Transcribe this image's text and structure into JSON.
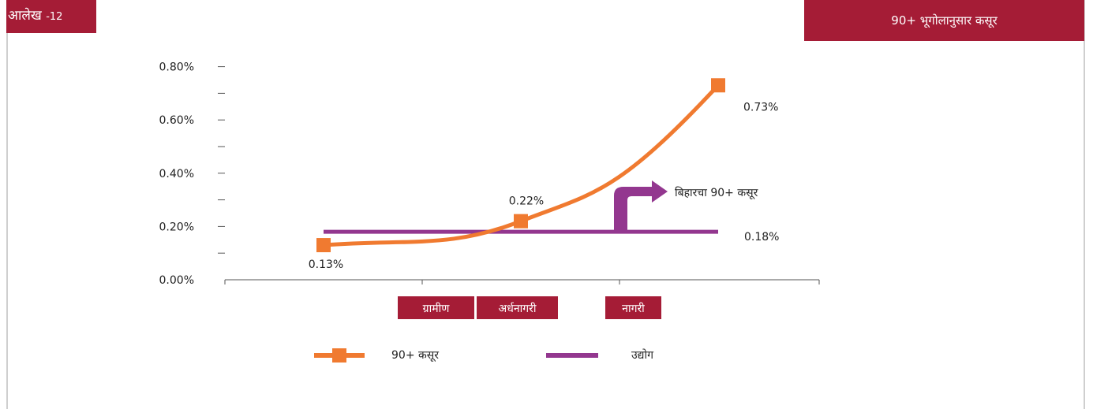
{
  "header": {
    "exhibit_label": "आलेख",
    "exhibit_number": "-12",
    "title": "90+ भूगोलानुसार कसूर"
  },
  "colors": {
    "brand": "#a51c36",
    "series_orange": "#f07a30",
    "series_purple": "#93378f",
    "axis": "#555555"
  },
  "chart_data": {
    "type": "line",
    "title": "90+ भूगोलानुसार कसूर",
    "categories": [
      "ग्रामीण",
      "अर्धनागरी",
      "नागरी"
    ],
    "y_ticks": [
      "0.00%",
      "0.20%",
      "0.40%",
      "0.60%",
      "0.80%"
    ],
    "ylim": [
      0,
      0.8
    ],
    "series": [
      {
        "name": "90+ कसूर",
        "values": [
          0.13,
          0.22,
          0.73
        ],
        "labels": [
          "0.13%",
          "0.22%",
          "0.73%"
        ]
      },
      {
        "name": "उद्योग",
        "values": [
          0.18,
          0.18,
          0.18
        ],
        "labels": [
          "0.18%"
        ]
      }
    ],
    "annotation": "बिहारचा 90+ कसूर",
    "legend": [
      "90+ कसूर",
      "उद्योग"
    ],
    "legend_position": "bottom",
    "grid": false
  }
}
